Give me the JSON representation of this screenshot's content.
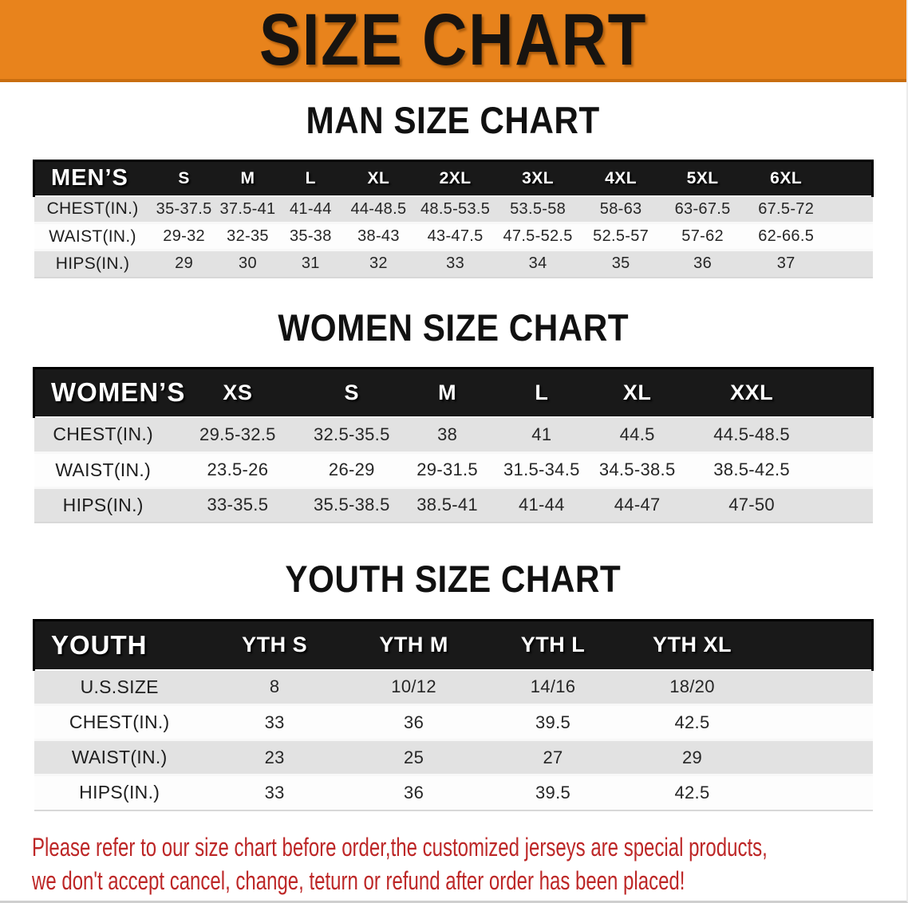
{
  "banner": {
    "title": "SIZE CHART"
  },
  "sections": [
    {
      "heading": "MAN SIZE CHART",
      "table": {
        "label": "MEN’S",
        "columns": [
          "S",
          "M",
          "L",
          "XL",
          "2XL",
          "3XL",
          "4XL",
          "5XL",
          "6XL"
        ],
        "rows": [
          {
            "label": "CHEST(IN.)",
            "values": [
              "35-37.5",
              "37.5-41",
              "41-44",
              "44-48.5",
              "48.5-53.5",
              "53.5-58",
              "58-63",
              "63-67.5",
              "67.5-72"
            ]
          },
          {
            "label": "WAIST(IN.)",
            "values": [
              "29-32",
              "32-35",
              "35-38",
              "38-43",
              "43-47.5",
              "47.5-52.5",
              "52.5-57",
              "57-62",
              "62-66.5"
            ]
          },
          {
            "label": "HIPS(IN.)",
            "values": [
              "29",
              "30",
              "31",
              "32",
              "33",
              "34",
              "35",
              "36",
              "37"
            ]
          }
        ]
      }
    },
    {
      "heading": "WOMEN SIZE CHART",
      "table": {
        "label": "WOMEN’S",
        "columns": [
          "XS",
          "S",
          "M",
          "L",
          "XL",
          "XXL"
        ],
        "rows": [
          {
            "label": "CHEST(IN.)",
            "values": [
              "29.5-32.5",
              "32.5-35.5",
              "38",
              "41",
              "44.5",
              "44.5-48.5"
            ]
          },
          {
            "label": "WAIST(IN.)",
            "values": [
              "23.5-26",
              "26-29",
              "29-31.5",
              "31.5-34.5",
              "34.5-38.5",
              "38.5-42.5"
            ]
          },
          {
            "label": "HIPS(IN.)",
            "values": [
              "33-35.5",
              "35.5-38.5",
              "38.5-41",
              "41-44",
              "44-47",
              "47-50"
            ]
          }
        ]
      }
    },
    {
      "heading": "YOUTH SIZE CHART",
      "table": {
        "label": "YOUTH",
        "columns": [
          "YTH S",
          "YTH M",
          "YTH L",
          "YTH XL"
        ],
        "rows": [
          {
            "label": "U.S.SIZE",
            "values": [
              "8",
              "10/12",
              "14/16",
              "18/20"
            ]
          },
          {
            "label": "CHEST(IN.)",
            "values": [
              "33",
              "36",
              "39.5",
              "42.5"
            ]
          },
          {
            "label": "WAIST(IN.)",
            "values": [
              "23",
              "25",
              "27",
              "29"
            ]
          },
          {
            "label": "HIPS(IN.)",
            "values": [
              "33",
              "36",
              "39.5",
              "42.5"
            ]
          }
        ]
      }
    }
  ],
  "disclaimer": {
    "line1": "Please refer to our size chart before order,the customized jerseys are special products,",
    "line2": "we don't accept cancel, change, teturn or refund after order has been placed!"
  },
  "colors": {
    "banner_orange": "#E8831C",
    "banner_edge": "#C96E10",
    "header_black": "#191919",
    "row_gray": "#E2E2E2",
    "disclaimer_red": "#BD2727"
  }
}
